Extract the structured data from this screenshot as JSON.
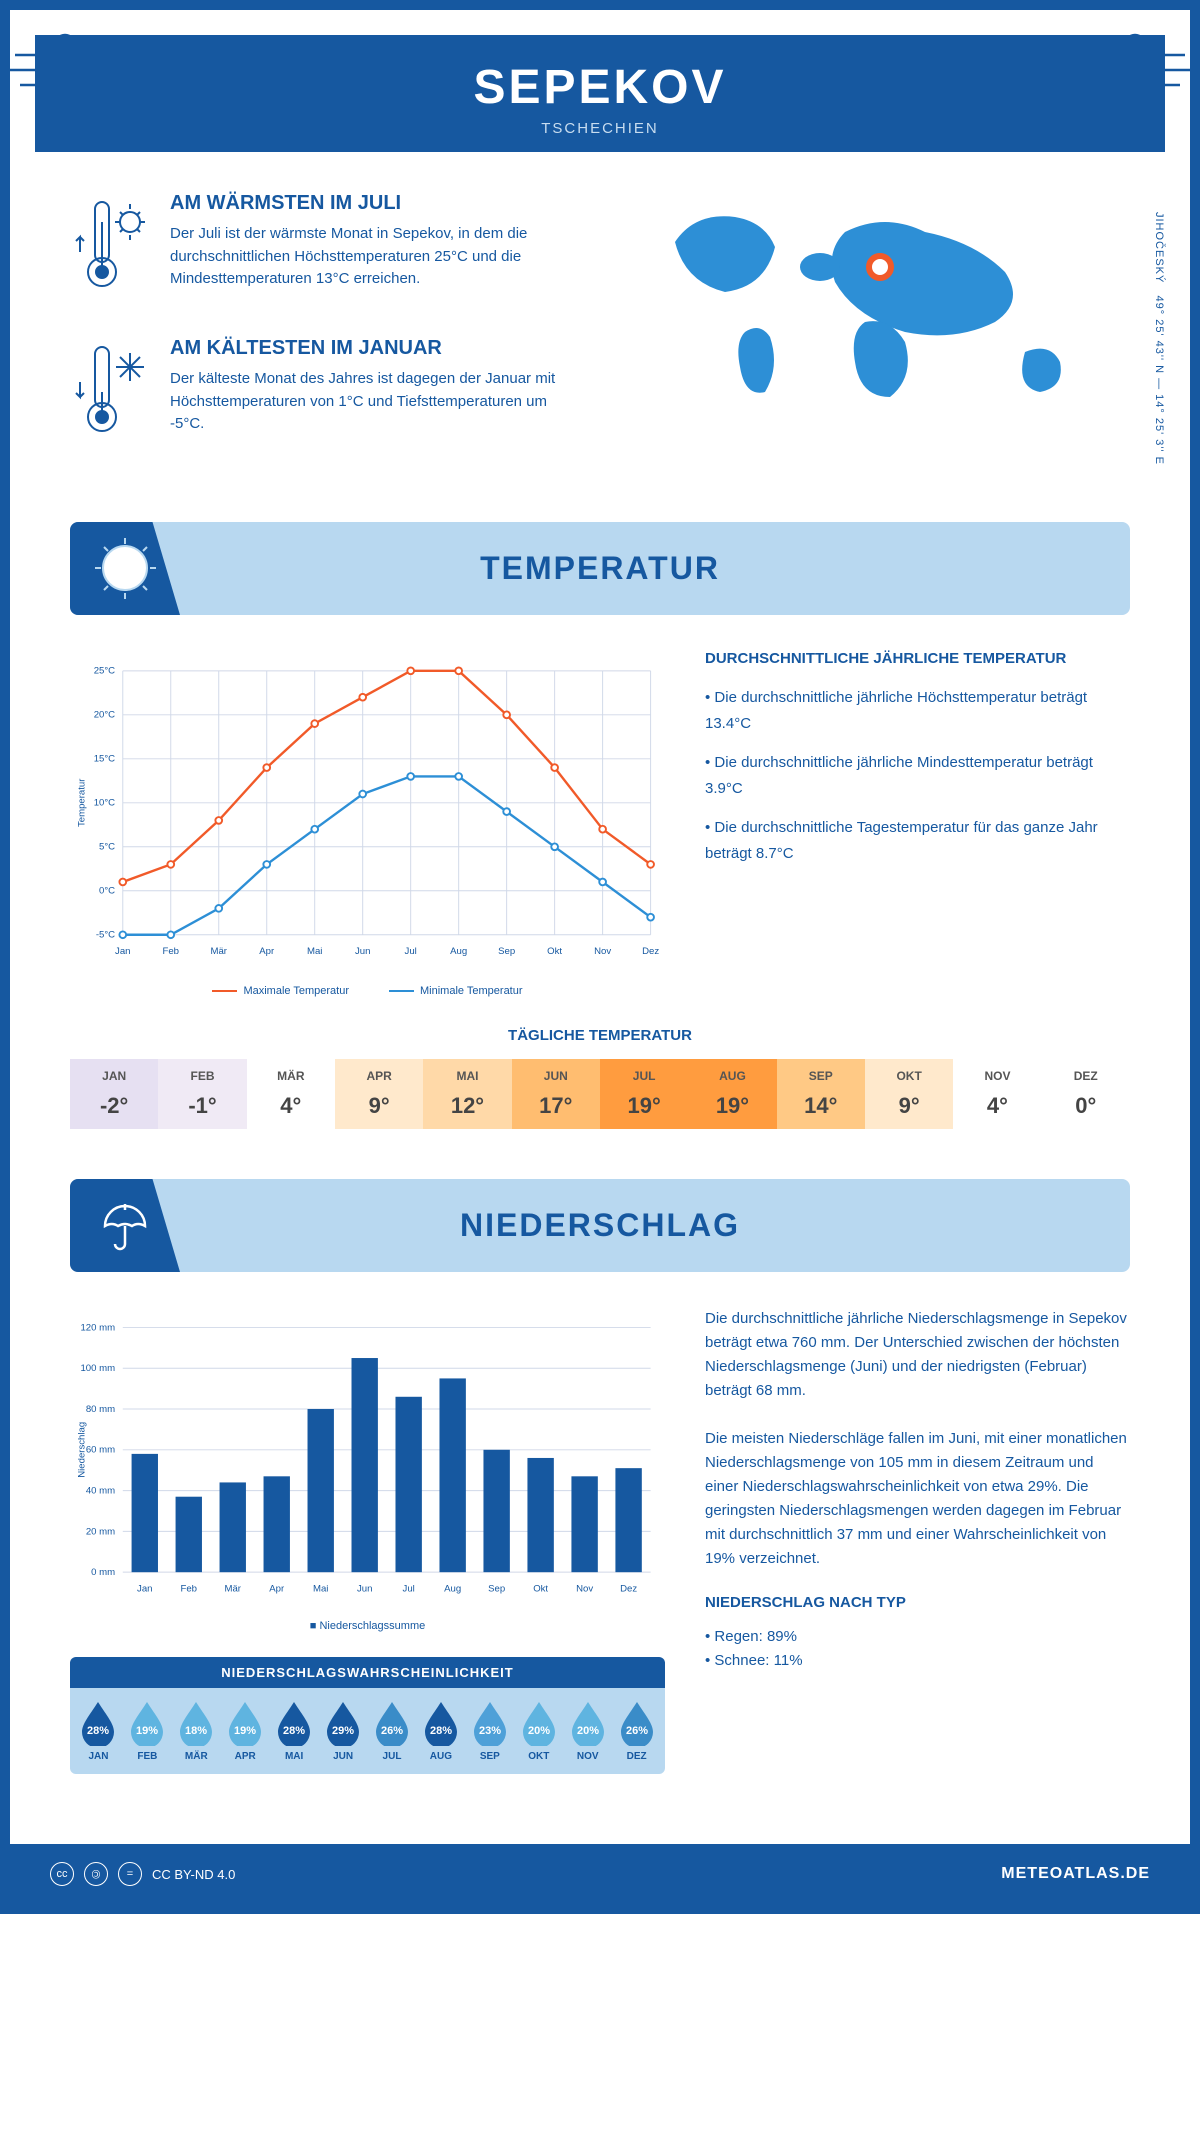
{
  "header": {
    "title": "SEPEKOV",
    "subtitle": "TSCHECHIEN"
  },
  "coords": {
    "lat": "49° 25' 43'' N — 14° 25' 3'' E",
    "region": "JIHOČESKÝ"
  },
  "facts": {
    "warm": {
      "title": "AM WÄRMSTEN IM JULI",
      "text": "Der Juli ist der wärmste Monat in Sepekov, in dem die durchschnittlichen Höchsttemperaturen 25°C und die Mindesttemperaturen 13°C erreichen."
    },
    "cold": {
      "title": "AM KÄLTESTEN IM JANUAR",
      "text": "Der kälteste Monat des Jahres ist dagegen der Januar mit Höchsttemperaturen von 1°C und Tiefsttemperaturen um -5°C."
    }
  },
  "sections": {
    "temp": "TEMPERATUR",
    "precip": "NIEDERSCHLAG"
  },
  "temp_chart": {
    "type": "line",
    "months": [
      "Jan",
      "Feb",
      "Mär",
      "Apr",
      "Mai",
      "Jun",
      "Jul",
      "Aug",
      "Sep",
      "Okt",
      "Nov",
      "Dez"
    ],
    "max": [
      1,
      3,
      8,
      14,
      19,
      22,
      25,
      25,
      20,
      14,
      7,
      3
    ],
    "min": [
      -5,
      -5,
      -2,
      3,
      7,
      11,
      13,
      13,
      9,
      5,
      1,
      -3
    ],
    "ylim": [
      -5,
      25
    ],
    "ytick_step": 5,
    "max_color": "#f15a29",
    "min_color": "#2d8fd6",
    "grid_color": "#d0d8e8",
    "background_color": "#ffffff",
    "y_label": "Temperatur",
    "legend_max": "Maximale Temperatur",
    "legend_min": "Minimale Temperatur"
  },
  "temp_text": {
    "title": "DURCHSCHNITTLICHE JÄHRLICHE TEMPERATUR",
    "line1": "• Die durchschnittliche jährliche Höchsttemperatur beträgt 13.4°C",
    "line2": "• Die durchschnittliche jährliche Mindesttemperatur beträgt 3.9°C",
    "line3": "• Die durchschnittliche Tagestemperatur für das ganze Jahr beträgt 8.7°C"
  },
  "daily_temp": {
    "title": "TÄGLICHE TEMPERATUR",
    "months": [
      "JAN",
      "FEB",
      "MÄR",
      "APR",
      "MAI",
      "JUN",
      "JUL",
      "AUG",
      "SEP",
      "OKT",
      "NOV",
      "DEZ"
    ],
    "values": [
      "-2°",
      "-1°",
      "4°",
      "9°",
      "12°",
      "17°",
      "19°",
      "19°",
      "14°",
      "9°",
      "4°",
      "0°"
    ],
    "colors": [
      "#e6e0f2",
      "#f0eaf5",
      "#ffffff",
      "#ffe9cc",
      "#ffd9a8",
      "#ffbd70",
      "#ff9c3f",
      "#ff9c3f",
      "#ffc985",
      "#ffe9cc",
      "#ffffff",
      "#ffffff"
    ]
  },
  "precip_chart": {
    "type": "bar",
    "months": [
      "Jan",
      "Feb",
      "Mär",
      "Apr",
      "Mai",
      "Jun",
      "Jul",
      "Aug",
      "Sep",
      "Okt",
      "Nov",
      "Dez"
    ],
    "values": [
      58,
      37,
      44,
      47,
      80,
      105,
      86,
      95,
      60,
      56,
      47,
      51
    ],
    "ylim": [
      0,
      120
    ],
    "ytick_step": 20,
    "bar_color": "#1658a0",
    "grid_color": "#d0d8e8",
    "y_label": "Niederschlag",
    "legend": "Niederschlagssumme"
  },
  "precip_text": {
    "p1": "Die durchschnittliche jährliche Niederschlagsmenge in Sepekov beträgt etwa 760 mm. Der Unterschied zwischen der höchsten Niederschlagsmenge (Juni) und der niedrigsten (Februar) beträgt 68 mm.",
    "p2": "Die meisten Niederschläge fallen im Juni, mit einer monatlichen Niederschlagsmenge von 105 mm in diesem Zeitraum und einer Niederschlagswahrscheinlichkeit von etwa 29%. Die geringsten Niederschlagsmengen werden dagegen im Februar mit durchschnittlich 37 mm und einer Wahrscheinlichkeit von 19% verzeichnet.",
    "type_title": "NIEDERSCHLAG NACH TYP",
    "type1": "• Regen: 89%",
    "type2": "• Schnee: 11%"
  },
  "prob": {
    "title": "NIEDERSCHLAGSWAHRSCHEINLICHKEIT",
    "months": [
      "JAN",
      "FEB",
      "MÄR",
      "APR",
      "MAI",
      "JUN",
      "JUL",
      "AUG",
      "SEP",
      "OKT",
      "NOV",
      "DEZ"
    ],
    "values": [
      "28%",
      "19%",
      "18%",
      "19%",
      "28%",
      "29%",
      "26%",
      "28%",
      "23%",
      "20%",
      "20%",
      "26%"
    ],
    "colors": [
      "#1658a0",
      "#5fb4e0",
      "#5fb4e0",
      "#5fb4e0",
      "#1658a0",
      "#1658a0",
      "#3a8cc8",
      "#1658a0",
      "#4ea0d8",
      "#5fb4e0",
      "#5fb4e0",
      "#3a8cc8"
    ]
  },
  "footer": {
    "license": "CC BY-ND 4.0",
    "site": "METEOATLAS.DE"
  }
}
